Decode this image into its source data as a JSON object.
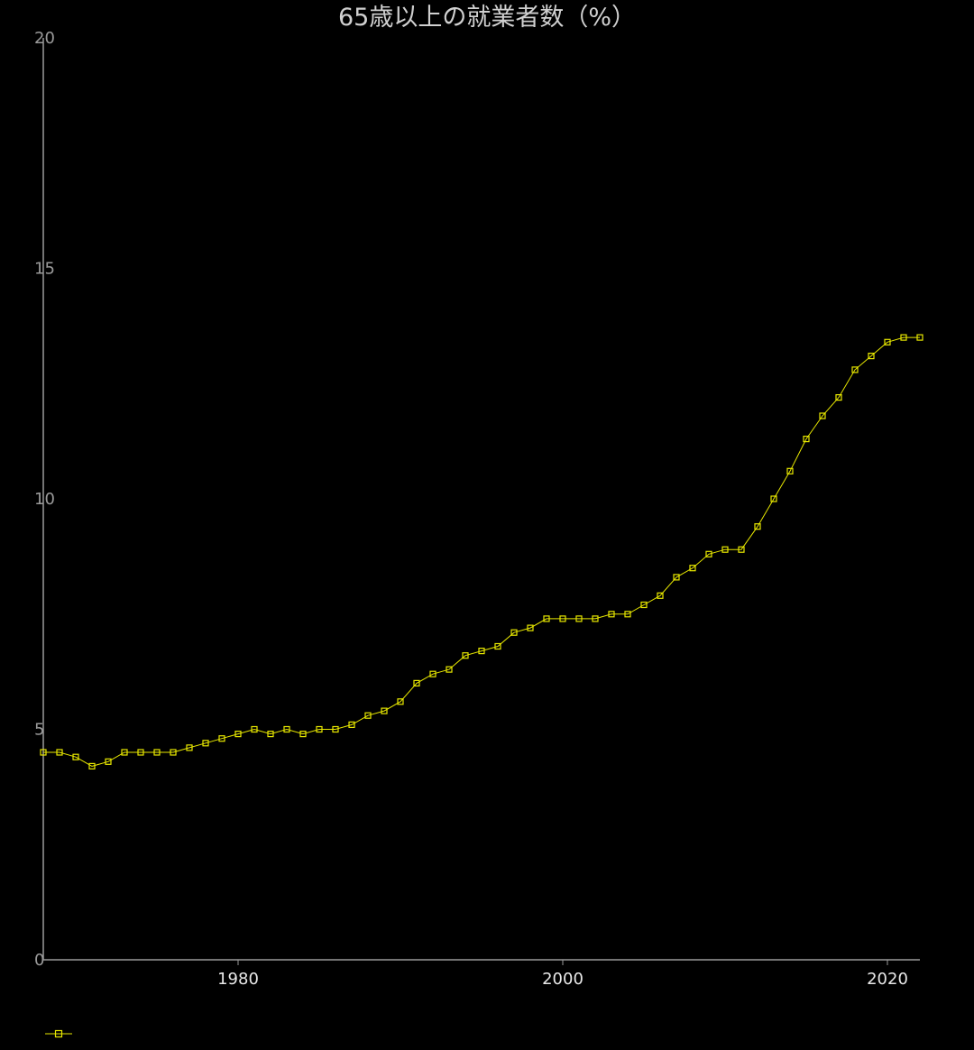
{
  "chart_data": {
    "type": "line",
    "title": "65歳以上の就業者数（%）",
    "xlabel": "",
    "ylabel": "",
    "xlim": [
      1968,
      2022
    ],
    "ylim": [
      0,
      20
    ],
    "x_ticks": [
      1980,
      2000,
      2020
    ],
    "y_ticks": [
      0,
      5,
      10,
      15,
      20
    ],
    "grid": false,
    "legend": "bottom-left",
    "colors": {
      "series": "#e8e800",
      "axis": "#9a9a9a",
      "background": "#000000"
    },
    "series": [
      {
        "x": [
          1968,
          1969,
          1970,
          1971,
          1972,
          1973,
          1974,
          1975,
          1976,
          1977,
          1978,
          1979,
          1980,
          1981,
          1982,
          1983,
          1984,
          1985,
          1986,
          1987,
          1988,
          1989,
          1990,
          1991,
          1992,
          1993,
          1994,
          1995,
          1996,
          1997,
          1998,
          1999,
          2000,
          2001,
          2002,
          2003,
          2004,
          2005,
          2006,
          2007,
          2008,
          2009,
          2010,
          2011,
          2012,
          2013,
          2014,
          2015,
          2016,
          2017,
          2018,
          2019,
          2020,
          2021,
          2022
        ],
        "values": [
          4.5,
          4.5,
          4.4,
          4.2,
          4.3,
          4.5,
          4.5,
          4.5,
          4.5,
          4.6,
          4.7,
          4.8,
          4.9,
          5.0,
          4.9,
          5.0,
          4.9,
          5.0,
          5.0,
          5.1,
          5.3,
          5.4,
          5.6,
          6.0,
          6.2,
          6.3,
          6.6,
          6.7,
          6.8,
          7.1,
          7.2,
          7.4,
          7.4,
          7.4,
          7.4,
          7.5,
          7.5,
          7.7,
          7.9,
          8.3,
          8.5,
          8.8,
          8.9,
          8.9,
          9.4,
          10.0,
          10.6,
          11.3,
          11.8,
          12.2,
          12.8,
          13.1,
          13.4,
          13.5,
          13.5
        ]
      }
    ]
  }
}
